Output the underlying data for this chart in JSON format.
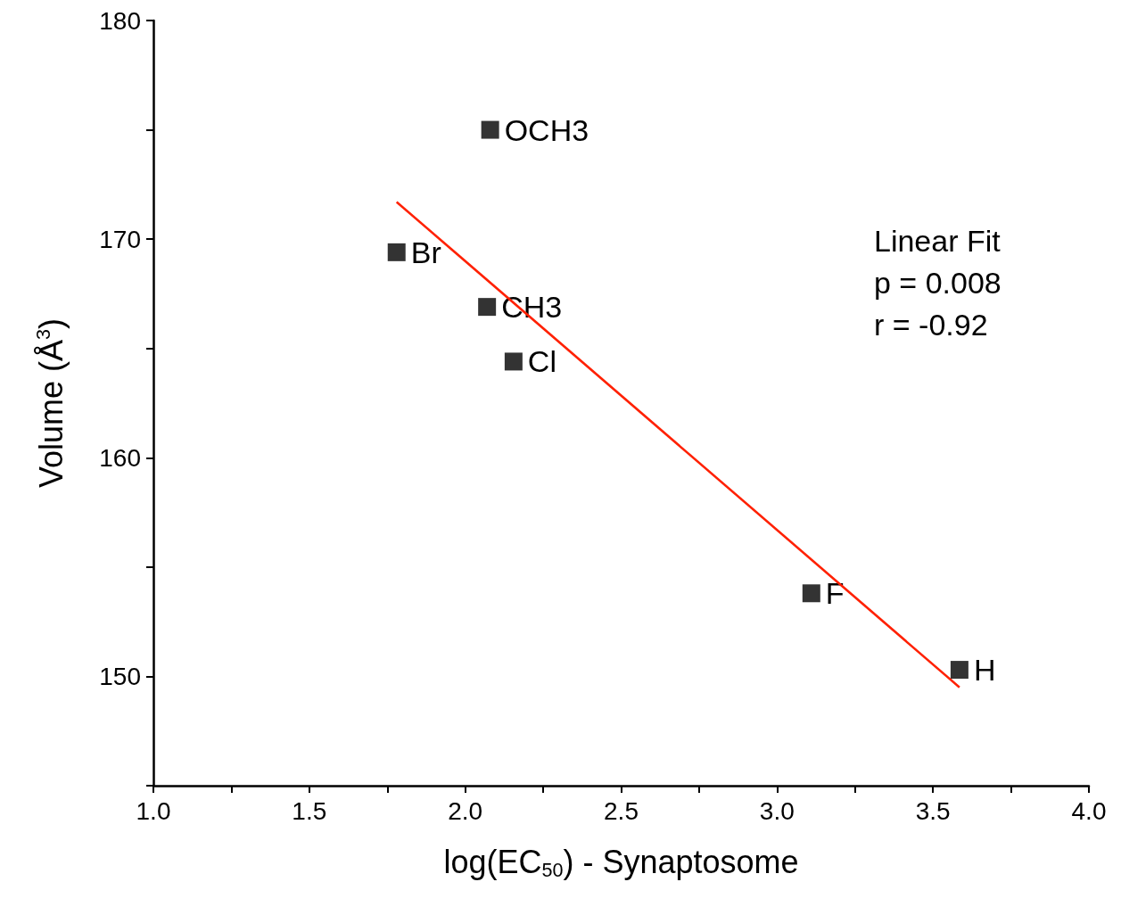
{
  "chart_data": {
    "type": "scatter",
    "xlabel": "log(EC$_{50}$) - Synaptosome",
    "ylabel": "Volume (Å$^{3}$)",
    "x": [
      2.08,
      1.78,
      2.07,
      2.155,
      3.11,
      3.585
    ],
    "series": [
      {
        "color": "#000000",
        "marker": "square",
        "values": [
          175,
          169.4,
          166.9,
          164.4,
          153.8,
          150.3
        ]
      },
      {
        "type": "line",
        "color": "#ff2000",
        "marker": "none",
        "x": [
          1.78,
          3.585
        ],
        "values": [
          171.7,
          149.5
        ]
      }
    ],
    "xlim": [
      1.0,
      4.0
    ],
    "xticks": [
      {
        "value": 1,
        "label": "1.0"
      },
      {
        "value": 1.25,
        "label": null
      },
      {
        "value": 1.5,
        "label": "1.5"
      },
      {
        "value": 1.75,
        "label": null
      },
      {
        "value": 2,
        "label": "2.0"
      },
      {
        "value": 2.25,
        "label": null
      },
      {
        "value": 2.5,
        "label": "2.5"
      },
      {
        "value": 2.75,
        "label": null
      },
      {
        "value": 3,
        "label": "3.0"
      },
      {
        "value": 3.25,
        "label": null
      },
      {
        "value": 3.5,
        "label": "3.5"
      },
      {
        "value": 3.75,
        "label": null
      },
      {
        "value": 4,
        "label": "4.0"
      }
    ],
    "ylim": [
      145,
      180
    ],
    "yticks": [
      {
        "value": 145,
        "label": null
      },
      150,
      {
        "value": 155,
        "label": null
      },
      160,
      {
        "value": 165,
        "label": null
      },
      170,
      {
        "value": 175,
        "label": null
      },
      180
    ],
    "grid": false,
    "annotations": [
      {
        "text": "OCH3",
        "x": 2.08,
        "y": 175
      },
      {
        "text": "Br",
        "x": 1.78,
        "y": 169.4
      },
      {
        "text": "CH3",
        "x": 2.07,
        "y": 166.9
      },
      {
        "text": "Cl",
        "x": 2.155,
        "y": 164.4
      },
      {
        "text": "F",
        "x": 3.11,
        "y": 153.8
      },
      {
        "text": "H",
        "x": 3.585,
        "y": 150.3
      },
      "Linear Fit",
      "p = 0.008",
      "r = -0.92"
    ]
  }
}
